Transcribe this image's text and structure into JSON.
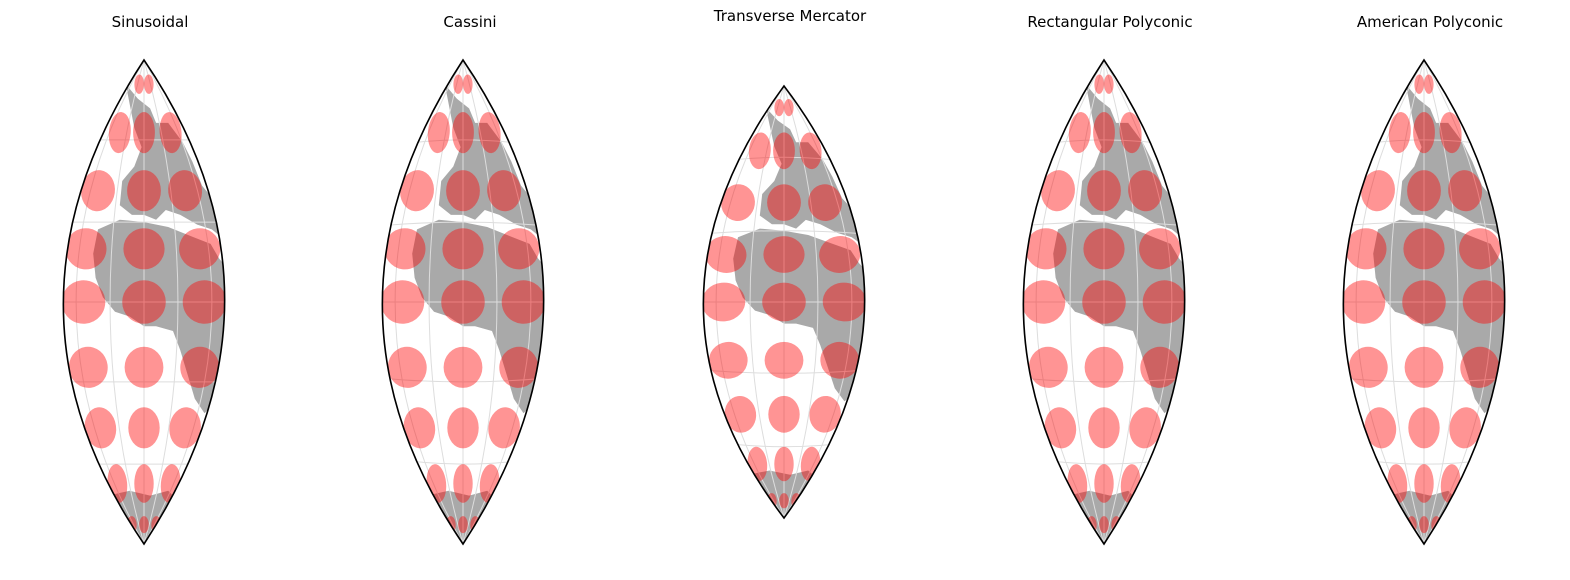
{
  "panels": [
    {
      "title": "Sinusoidal",
      "shape": "lens"
    },
    {
      "title": "Cassini",
      "shape": "lens"
    },
    {
      "title": "Transverse Mercator",
      "shape": "lens-short"
    },
    {
      "title": "Rectangular Polyconic",
      "shape": "lens"
    },
    {
      "title": "American Polyconic",
      "shape": "lens"
    }
  ],
  "colors": {
    "land": "#a9a9a9",
    "ellipse": "#ff0000",
    "ellipse_opacity": 0.42,
    "graticule": "#dddddd",
    "outline": "#000000"
  }
}
